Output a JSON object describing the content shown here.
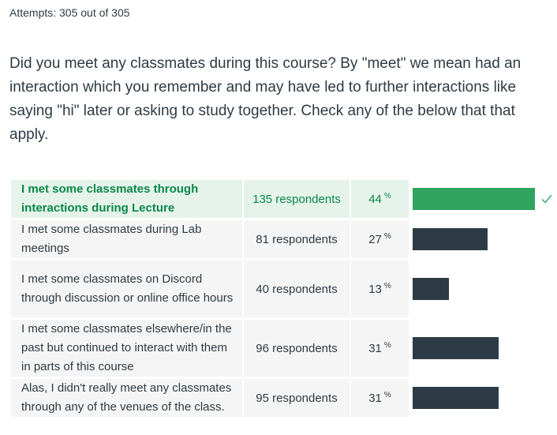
{
  "attempts": "Attempts: 305 out of 305",
  "question": "Did you meet any classmates during this course? By \"meet\" we mean had an interaction which you remember and may have led to further interactions like saying \"hi\" later or asking to study together. Check any of the below that that apply.",
  "answers": [
    {
      "label": "I met some classmates through interactions during Lecture",
      "respondents": "135 respondents",
      "percent": "44",
      "fraction": 0.44,
      "correct": true
    },
    {
      "label": "I met some classmates during Lab meetings",
      "respondents": "81 respondents",
      "percent": "27",
      "fraction": 0.27,
      "correct": false
    },
    {
      "label": "I met some classmates on Discord through discussion or online office hours",
      "respondents": "40 respondents",
      "percent": "13",
      "fraction": 0.13,
      "correct": false
    },
    {
      "label": "I met some classmates elsewhere/in the past but continued to interact with them in parts of this course",
      "respondents": "96 respondents",
      "percent": "31",
      "fraction": 0.31,
      "correct": false
    },
    {
      "label": "Alas, I didn't really meet any classmates through any of the venues of the class.",
      "respondents": "95 respondents",
      "percent": "31",
      "fraction": 0.31,
      "correct": false
    }
  ],
  "percent_sign": "%",
  "colors": {
    "correct_bar": "#2fa45f",
    "bar": "#2d3b45",
    "correct_bg": "#e5f3ea",
    "correct_text": "#0b874b"
  },
  "icons": {
    "correct": "check-icon"
  }
}
